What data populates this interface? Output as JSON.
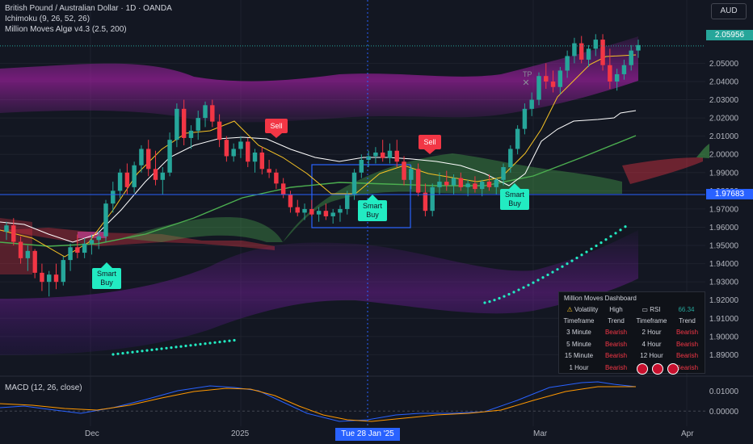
{
  "header": {
    "symbol_line": "British Pound / Australian Dollar · 1D · OANDA",
    "indicator1": "Ichimoku (9, 26, 52, 26)",
    "indicator2": "Million Moves Algø v4.3 (2.5, 200)",
    "currency": "AUD"
  },
  "price_tags": {
    "last": "2.05956",
    "crosshair": "1.97683"
  },
  "signals": {
    "sell": "Sell",
    "smart_buy_line1": "Smart",
    "smart_buy_line2": "Buy",
    "tp": "TP"
  },
  "dashboard": {
    "title": "Million Moves  Dashboard",
    "volatility_label": "Volatility",
    "volatility_value": "High",
    "rsi_label": "RSI",
    "rsi_value": "66.34",
    "headers": [
      "Timeframe",
      "Trend",
      "Timeframe",
      "Trend"
    ],
    "rows": [
      [
        "3 Minute",
        "Bearish",
        "2 Hour",
        "Bearish"
      ],
      [
        "5 Minute",
        "Bearish",
        "4 Hour",
        "Bearish"
      ],
      [
        "15 Minute",
        "Bearish",
        "12 Hour",
        "Bearish"
      ],
      [
        "1 Hour",
        "Bearish",
        "",
        "Bearish"
      ]
    ]
  },
  "macd": {
    "label": "MACD (12, 26, close)"
  },
  "time_axis": {
    "labels": [
      "Dec",
      "2025",
      "Mar",
      "Apr"
    ],
    "cursor": "Tue 28 Jan '25"
  },
  "colors": {
    "background": "#131722",
    "up": "#26a69a",
    "down": "#f23645",
    "cursor": "#2962ff",
    "last_price": "#26a69a"
  },
  "chart_data": {
    "type": "candlestick",
    "ylim": [
      1.88,
      2.075
    ],
    "y_ticks": [
      "2.05000",
      "2.04000",
      "2.03000",
      "2.02000",
      "2.01000",
      "2.00000",
      "1.99000",
      "1.98000",
      "1.97000",
      "1.96000",
      "1.95000",
      "1.94000",
      "1.93000",
      "1.92000",
      "1.91000",
      "1.90000",
      "1.89000"
    ],
    "macd_ticks": [
      "0.01000",
      "0.00000"
    ],
    "macd_ylim": [
      -0.006,
      0.016
    ],
    "candles": [
      [
        1.9575,
        1.963,
        1.953,
        1.961
      ],
      [
        1.961,
        1.965,
        1.95,
        1.952
      ],
      [
        1.952,
        1.955,
        1.94,
        1.943
      ],
      [
        1.943,
        1.95,
        1.936,
        1.947
      ],
      [
        1.947,
        1.948,
        1.932,
        1.935
      ],
      [
        1.935,
        1.94,
        1.925,
        1.93
      ],
      [
        1.93,
        1.936,
        1.922,
        1.934
      ],
      [
        1.934,
        1.94,
        1.926,
        1.93
      ],
      [
        1.93,
        1.944,
        1.928,
        1.942
      ],
      [
        1.942,
        1.951,
        1.936,
        1.949
      ],
      [
        1.949,
        1.956,
        1.943,
        1.946
      ],
      [
        1.946,
        1.954,
        1.943,
        1.951
      ],
      [
        1.951,
        1.956,
        1.945,
        1.953
      ],
      [
        1.953,
        1.958,
        1.948,
        1.955
      ],
      [
        1.955,
        1.975,
        1.952,
        1.973
      ],
      [
        1.973,
        1.985,
        1.968,
        1.98
      ],
      [
        1.98,
        1.992,
        1.976,
        1.99
      ],
      [
        1.99,
        1.995,
        1.978,
        1.982
      ],
      [
        1.982,
        1.996,
        1.979,
        1.994
      ],
      [
        1.994,
        2.005,
        1.99,
        2.003
      ],
      [
        2.003,
        2.008,
        1.988,
        1.992
      ],
      [
        1.992,
        2.002,
        1.983,
        1.986
      ],
      [
        1.986,
        1.993,
        1.978,
        1.99
      ],
      [
        1.99,
        2.012,
        1.988,
        2.008
      ],
      [
        2.008,
        2.028,
        2.004,
        2.025
      ],
      [
        2.025,
        2.03,
        2.005,
        2.009
      ],
      [
        2.009,
        2.016,
        2.003,
        2.013
      ],
      [
        2.013,
        2.024,
        2.008,
        2.02
      ],
      [
        2.02,
        2.029,
        2.015,
        2.027
      ],
      [
        2.027,
        2.03,
        2.015,
        2.018
      ],
      [
        2.018,
        2.022,
        2.004,
        2.008
      ],
      [
        2.008,
        2.01,
        1.996,
        1.999
      ],
      [
        1.999,
        2.006,
        1.996,
        2.003
      ],
      [
        2.003,
        2.01,
        1.998,
        2.007
      ],
      [
        2.007,
        2.009,
        1.993,
        1.996
      ],
      [
        1.996,
        2.003,
        1.99,
        2.001
      ],
      [
        2.001,
        2.004,
        1.989,
        1.992
      ],
      [
        1.992,
        1.997,
        1.987,
        1.99
      ],
      [
        1.99,
        1.992,
        1.981,
        1.984
      ],
      [
        1.984,
        1.987,
        1.976,
        1.978
      ],
      [
        1.978,
        1.98,
        1.968,
        1.971
      ],
      [
        1.971,
        1.975,
        1.966,
        1.968
      ],
      [
        1.968,
        1.973,
        1.964,
        1.97
      ],
      [
        1.97,
        1.975,
        1.966,
        1.967
      ],
      [
        1.967,
        1.971,
        1.963,
        1.969
      ],
      [
        1.969,
        1.973,
        1.964,
        1.966
      ],
      [
        1.966,
        1.97,
        1.962,
        1.968
      ],
      [
        1.968,
        1.972,
        1.963,
        1.97
      ],
      [
        1.97,
        1.98,
        1.967,
        1.978
      ],
      [
        1.978,
        1.992,
        1.975,
        1.99
      ],
      [
        1.99,
        2.0,
        1.987,
        1.997
      ],
      [
        1.997,
        2.002,
        1.993,
        1.999
      ],
      [
        1.999,
        2.004,
        1.995,
        2.001
      ],
      [
        2.001,
        2.008,
        1.996,
        1.998
      ],
      [
        1.998,
        2.006,
        1.995,
        2.002
      ],
      [
        2.002,
        2.008,
        1.993,
        1.996
      ],
      [
        1.996,
        1.999,
        1.983,
        1.986
      ],
      [
        1.986,
        1.994,
        1.981,
        1.992
      ],
      [
        1.992,
        1.995,
        1.977,
        1.979
      ],
      [
        1.979,
        1.984,
        1.966,
        1.969
      ],
      [
        1.969,
        1.984,
        1.966,
        1.982
      ],
      [
        1.982,
        1.99,
        1.978,
        1.985
      ],
      [
        1.985,
        1.991,
        1.98,
        1.983
      ],
      [
        1.983,
        1.989,
        1.978,
        1.987
      ],
      [
        1.987,
        1.99,
        1.98,
        1.982
      ],
      [
        1.982,
        1.986,
        1.977,
        1.984
      ],
      [
        1.984,
        1.988,
        1.979,
        1.981
      ],
      [
        1.981,
        1.986,
        1.977,
        1.985
      ],
      [
        1.985,
        1.989,
        1.98,
        1.982
      ],
      [
        1.982,
        1.987,
        1.978,
        1.986
      ],
      [
        1.986,
        1.995,
        1.983,
        1.993
      ],
      [
        1.993,
        2.005,
        1.99,
        2.003
      ],
      [
        2.003,
        2.016,
        2.0,
        2.014
      ],
      [
        2.014,
        2.028,
        2.011,
        2.025
      ],
      [
        2.025,
        2.034,
        2.021,
        2.03
      ],
      [
        2.03,
        2.045,
        2.027,
        2.043
      ],
      [
        2.043,
        2.05,
        2.036,
        2.04
      ],
      [
        2.04,
        2.046,
        2.034,
        2.037
      ],
      [
        2.037,
        2.048,
        2.033,
        2.046
      ],
      [
        2.046,
        2.057,
        2.042,
        2.054
      ],
      [
        2.054,
        2.064,
        2.05,
        2.061
      ],
      [
        2.061,
        2.065,
        2.05,
        2.052
      ],
      [
        2.052,
        2.06,
        2.048,
        2.058
      ],
      [
        2.058,
        2.066,
        2.054,
        2.063
      ],
      [
        2.063,
        2.066,
        2.046,
        2.049
      ],
      [
        2.049,
        2.058,
        2.036,
        2.04
      ],
      [
        2.04,
        2.047,
        2.035,
        2.044
      ],
      [
        2.044,
        2.052,
        2.041,
        2.049
      ],
      [
        2.049,
        2.06,
        2.046,
        2.057
      ],
      [
        2.057,
        2.063,
        2.053,
        2.06
      ]
    ]
  }
}
